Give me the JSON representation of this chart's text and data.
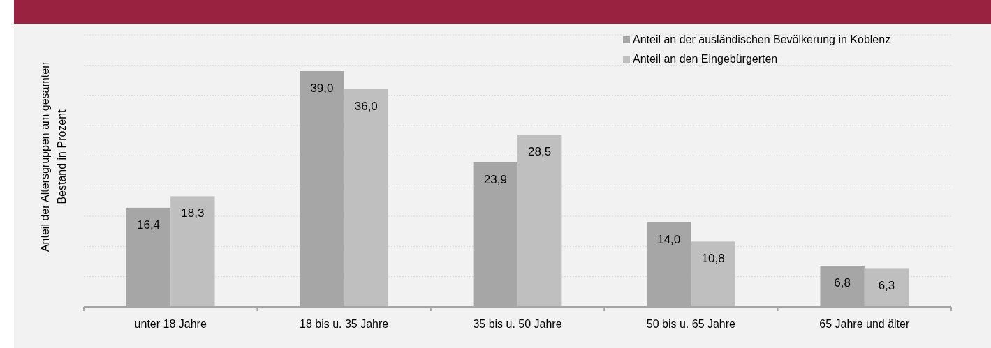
{
  "chart_data": {
    "type": "bar",
    "ylabel": "Anteil der Altersgruppen am gesamten\nBestand in Prozent",
    "categories": [
      "unter 18 Jahre",
      "18 bis u. 35 Jahre",
      "35 bis u. 50 Jahre",
      "50 bis u. 65 Jahre",
      "65 Jahre und älter"
    ],
    "series": [
      {
        "name": "Anteil an der ausländischen Bevölkerung in Koblenz",
        "color": "#a6a6a6",
        "values": [
          16.4,
          39.0,
          23.9,
          14.0,
          6.8
        ],
        "value_labels": [
          "16,4",
          "39,0",
          "23,9",
          "14,0",
          "6,8"
        ]
      },
      {
        "name": "Anteil an den Eingebürgerten",
        "color": "#bfbfbf",
        "values": [
          18.3,
          36.0,
          28.5,
          10.8,
          6.3
        ],
        "value_labels": [
          "18,3",
          "36,0",
          "28,5",
          "10,8",
          "6,3"
        ]
      }
    ],
    "ylim": [
      0,
      45
    ],
    "yticks": [
      {
        "value": 0,
        "label": null
      },
      {
        "value": 5,
        "label": null
      },
      {
        "value": 10,
        "label": null
      },
      {
        "value": 15,
        "label": null
      },
      {
        "value": 20,
        "label": null
      },
      {
        "value": 25,
        "label": null
      },
      {
        "value": 30,
        "label": null
      },
      {
        "value": 35,
        "label": null
      },
      {
        "value": 40,
        "label": null
      },
      {
        "value": 45,
        "label": null
      }
    ],
    "grid": "y",
    "legend": "top right",
    "tick_labels": "x"
  }
}
